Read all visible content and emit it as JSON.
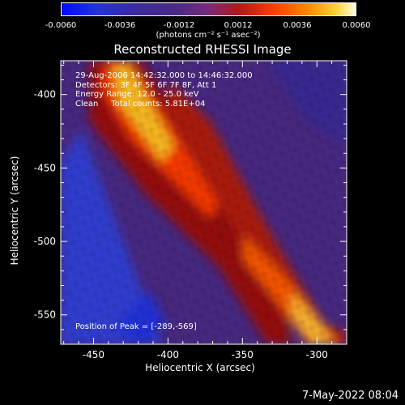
{
  "colorbar": {
    "tick_labels": [
      "-0.0060",
      "-0.0036",
      "-0.0012",
      "0.0012",
      "0.0036",
      "0.0060"
    ],
    "units": "(photons cm⁻² s⁻¹ asec⁻²)",
    "range": [
      -0.006,
      0.006
    ]
  },
  "info": {
    "line1": "29-Aug-2006 14:42:32.000 to 14:46:32.000",
    "line2": "Detectors: 3F 4F 5F 6F 7F 8F, Att 1",
    "line3": "Energy Range: 12.0 - 25.0 keV",
    "line4": "Clean     Total counts: 5.81E+04"
  },
  "peak": "Position of Peak = [-289,-569]",
  "footer_date": "7-May-2022 08:04",
  "chart_data": {
    "type": "heatmap",
    "title": "Reconstructed RHESSI Image",
    "xlabel": "Heliocentric X (arcsec)",
    "ylabel": "Heliocentric Y (arcsec)",
    "xlim": [
      -472,
      -280
    ],
    "ylim": [
      -570,
      -377
    ],
    "xticks": [
      -450,
      -400,
      -350,
      -300
    ],
    "yticks": [
      -400,
      -450,
      -500,
      -550
    ],
    "xtick_labels": [
      "-450",
      "-400",
      "-350",
      "-300"
    ],
    "ytick_labels": [
      "-400",
      "-450",
      "-500",
      "-550"
    ],
    "colormap": "blue-purple-red-yellow-white",
    "features": [
      {
        "description": "bright diagonal ridge",
        "level": 0.0055
      },
      {
        "description": "secondary ridge lower right",
        "level": 0.004
      },
      {
        "description": "negative region lower left",
        "level": -0.005
      }
    ],
    "peak_position": [
      -289,
      -569
    ]
  }
}
